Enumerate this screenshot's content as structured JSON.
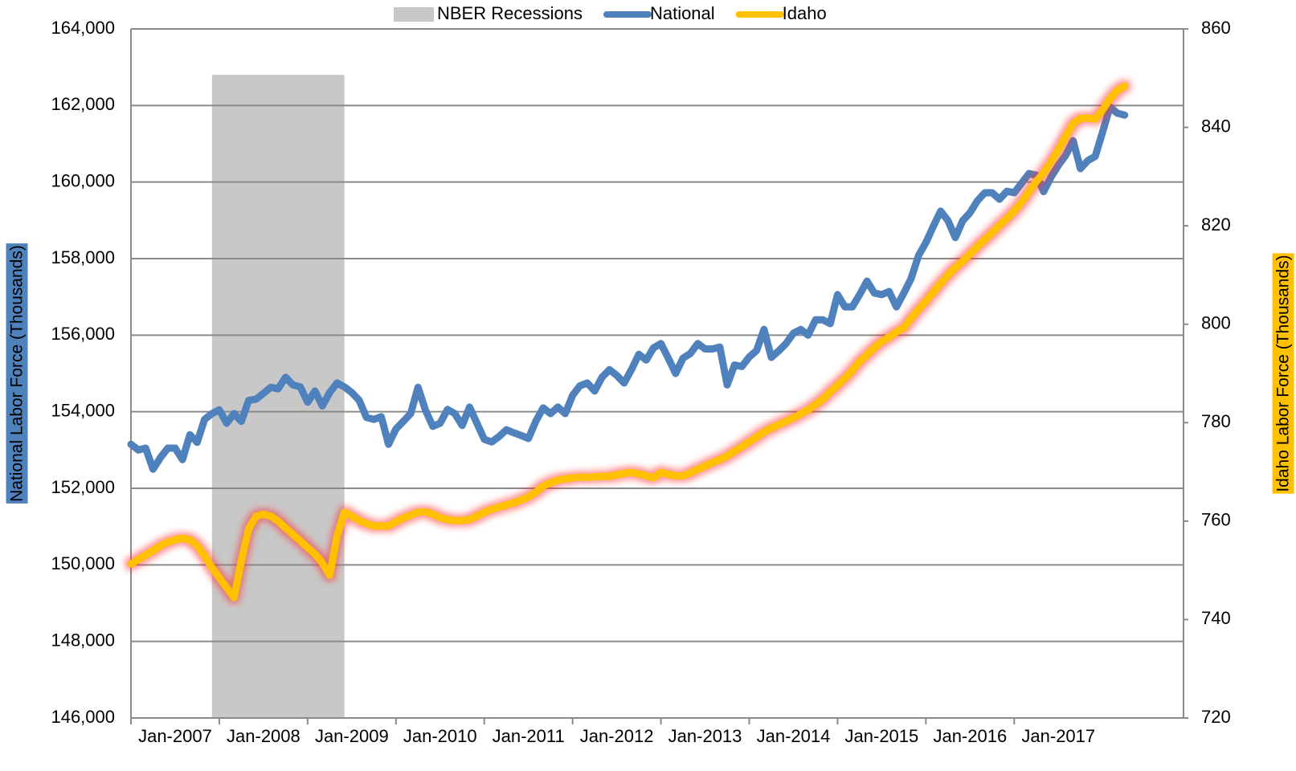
{
  "chart_data": {
    "type": "line",
    "legend": "top",
    "grid": true,
    "ylabel": "National Labor Force (Thousands)",
    "y2label": "Idaho Labor Force (Thousands)",
    "recession": {
      "name": "NBER Recessions",
      "start": 11,
      "end": 29,
      "top": 162800,
      "color": "#c8c8c8"
    },
    "xlim": [
      0,
      143
    ],
    "categories": [
      "Jan-2007",
      null,
      null,
      null,
      null,
      null,
      null,
      null,
      null,
      null,
      null,
      null,
      "Jan-2008",
      null,
      null,
      null,
      null,
      null,
      null,
      null,
      null,
      null,
      null,
      null,
      "Jan-2009",
      null,
      null,
      null,
      null,
      null,
      null,
      null,
      null,
      null,
      null,
      null,
      "Jan-2010",
      null,
      null,
      null,
      null,
      null,
      null,
      null,
      null,
      null,
      null,
      null,
      "Jan-2011",
      null,
      null,
      null,
      null,
      null,
      null,
      null,
      null,
      null,
      null,
      null,
      "Jan-2012",
      null,
      null,
      null,
      null,
      null,
      null,
      null,
      null,
      null,
      null,
      null,
      "Jan-2013",
      null,
      null,
      null,
      null,
      null,
      null,
      null,
      null,
      null,
      null,
      null,
      "Jan-2014",
      null,
      null,
      null,
      null,
      null,
      null,
      null,
      null,
      null,
      null,
      null,
      "Jan-2015",
      null,
      null,
      null,
      null,
      null,
      null,
      null,
      null,
      null,
      null,
      null,
      "Jan-2016",
      null,
      null,
      null,
      null,
      null,
      null,
      null,
      null,
      null,
      null,
      null,
      "Jan-2017",
      null,
      null,
      null,
      null,
      null,
      null,
      null,
      null,
      null,
      null,
      null,
      null,
      null,
      null,
      null
    ],
    "ylim": [
      146000,
      164000
    ],
    "yticks": [
      {
        "value": 146000,
        "label": "146,000"
      },
      {
        "value": 148000,
        "label": "148,000"
      },
      {
        "value": 150000,
        "label": "150,000"
      },
      {
        "value": 152000,
        "label": "152,000"
      },
      {
        "value": 154000,
        "label": "154,000"
      },
      {
        "value": 156000,
        "label": "156,000"
      },
      {
        "value": 158000,
        "label": "158,000"
      },
      {
        "value": 160000,
        "label": "160,000"
      },
      {
        "value": 162000,
        "label": "162,000"
      },
      {
        "value": 164000,
        "label": "164,000"
      }
    ],
    "y2lim": [
      720,
      860
    ],
    "y2ticks": [
      720,
      740,
      760,
      780,
      800,
      820,
      840,
      860
    ],
    "series": [
      {
        "name": "National",
        "color": "#4f81bd",
        "axis": "y",
        "values": [
          153150,
          153000,
          153050,
          152500,
          152800,
          153050,
          153050,
          152750,
          153400,
          153200,
          153800,
          153950,
          154050,
          153700,
          153950,
          153750,
          154300,
          154330,
          154480,
          154640,
          154600,
          154900,
          154700,
          154650,
          154250,
          154540,
          154150,
          154500,
          154750,
          154650,
          154500,
          154300,
          153850,
          153800,
          153870,
          153150,
          153550,
          153750,
          153950,
          154640,
          154050,
          153620,
          153700,
          154060,
          153950,
          153640,
          154120,
          153700,
          153280,
          153210,
          153350,
          153530,
          153450,
          153380,
          153300,
          153750,
          154100,
          153950,
          154120,
          153950,
          154430,
          154680,
          154750,
          154540,
          154900,
          155100,
          154950,
          154750,
          155100,
          155500,
          155350,
          155670,
          155780,
          155400,
          155000,
          155400,
          155520,
          155780,
          155640,
          155640,
          155690,
          154700,
          155220,
          155180,
          155430,
          155600,
          156150,
          155420,
          155590,
          155780,
          156050,
          156150,
          156000,
          156400,
          156400,
          156300,
          157060,
          156740,
          156740,
          157060,
          157410,
          157100,
          157060,
          157140,
          156740,
          157100,
          157480,
          158080,
          158420,
          158840,
          159240,
          158990,
          158550,
          158990,
          159200,
          159510,
          159720,
          159720,
          159550,
          159760,
          159720,
          159970,
          160220,
          160180,
          159750,
          160130,
          160440,
          160700,
          161080,
          160350,
          160560,
          160670,
          161300,
          161960,
          161800,
          161750
        ]
      },
      {
        "name": "Idaho",
        "color": "#ffc000",
        "axis": "y2",
        "values": [
          751.3,
          752.2,
          753.1,
          754.0,
          755.0,
          755.7,
          756.2,
          756.5,
          756.2,
          755.0,
          753.0,
          750.5,
          748.5,
          746.5,
          744.5,
          752.0,
          758.5,
          761.0,
          761.4,
          761.0,
          760.0,
          758.6,
          757.3,
          756.0,
          754.6,
          753.3,
          751.5,
          749.0,
          757.0,
          761.8,
          761.0,
          760.1,
          759.5,
          759.0,
          759.0,
          759.0,
          759.9,
          760.6,
          761.2,
          761.8,
          761.9,
          761.4,
          760.7,
          760.3,
          760.1,
          760.1,
          760.3,
          761.0,
          761.8,
          762.4,
          762.8,
          763.3,
          763.7,
          764.3,
          764.9,
          765.9,
          767.1,
          767.8,
          768.3,
          768.6,
          768.8,
          768.9,
          768.9,
          769.0,
          769.1,
          769.1,
          769.4,
          769.7,
          769.9,
          769.6,
          769.2,
          768.8,
          769.9,
          769.5,
          769.2,
          769.2,
          769.8,
          770.5,
          771.2,
          771.9,
          772.5,
          773.2,
          774.2,
          775.1,
          776.1,
          777.1,
          778.1,
          778.9,
          779.6,
          780.3,
          781.0,
          781.8,
          782.6,
          783.7,
          784.8,
          786.3,
          787.6,
          789.0,
          790.6,
          792.4,
          793.8,
          795.2,
          796.5,
          797.4,
          798.4,
          799.3,
          801.2,
          803.0,
          804.7,
          806.5,
          808.3,
          810.0,
          811.5,
          812.8,
          814.3,
          815.8,
          817.2,
          818.6,
          820.1,
          821.5,
          823.0,
          824.8,
          826.9,
          829.0,
          830.8,
          833.0,
          835.5,
          838.2,
          840.8,
          841.8,
          841.9,
          841.7,
          843.5,
          845.8,
          847.5,
          848.4
        ]
      }
    ]
  }
}
